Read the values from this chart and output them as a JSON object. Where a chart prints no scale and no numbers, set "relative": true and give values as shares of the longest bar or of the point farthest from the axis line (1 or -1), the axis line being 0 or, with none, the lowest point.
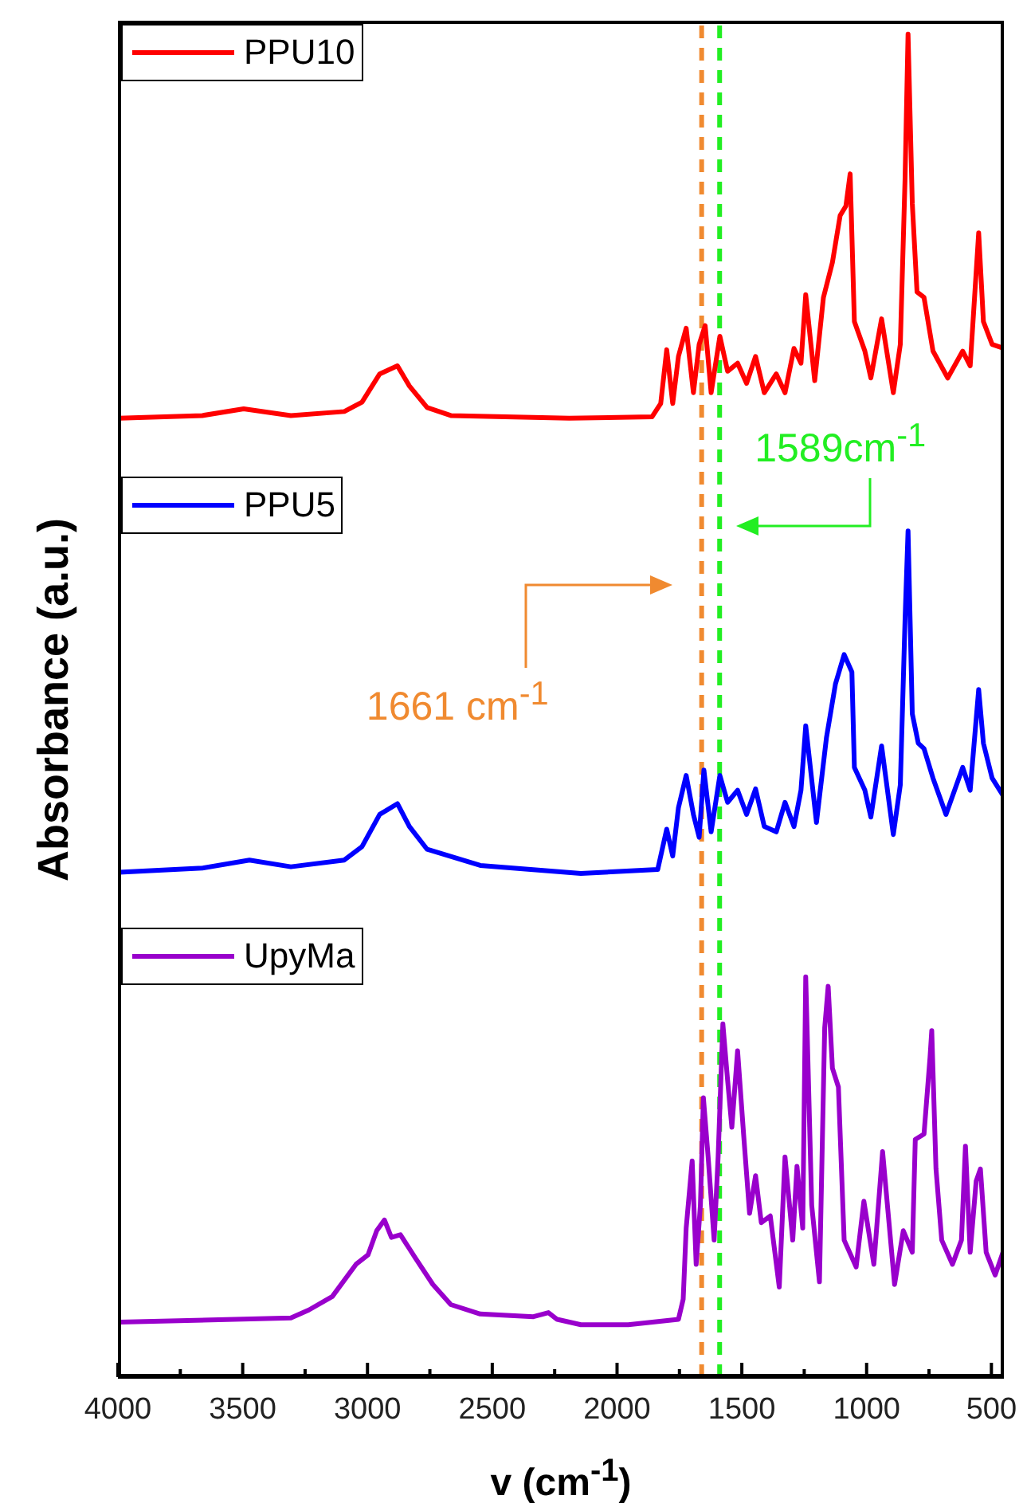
{
  "chart_data": {
    "type": "line",
    "relative": true,
    "xlabel": "v (cm$^{-1}$)",
    "ylabel": "Absorbance (a.u.)",
    "legend": "top left",
    "xlim": [
      4000,
      450
    ],
    "xticks": [
      4000,
      {
        "value": 3750,
        "label": null
      },
      3500,
      {
        "value": 3250,
        "label": null
      },
      3000,
      {
        "value": 2750,
        "label": null
      },
      2500,
      {
        "value": 2250,
        "label": null
      },
      2000,
      {
        "value": 1750,
        "label": null
      },
      1500,
      {
        "value": 1250,
        "label": null
      },
      1000,
      {
        "value": 750,
        "label": null
      },
      500
    ],
    "ref_lines": [
      {
        "axis": "x",
        "value": 1661,
        "label": "1661 cm$^{-1}$",
        "color": "#f08a30",
        "line_style": "dashed"
      },
      {
        "axis": "x",
        "value": 1589,
        "label": "1589cm$^{-1}$",
        "color": "#22ee22",
        "line_style": "dashed"
      }
    ],
    "series": [
      {
        "name": "PPU10",
        "color": "#ff0000",
        "x": [
          3994,
          3662,
          3496,
          3307,
          3093,
          3022,
          2951,
          2880,
          2832,
          2761,
          2666,
          2192,
          1860,
          1825,
          1801,
          1777,
          1754,
          1723,
          1694,
          1671,
          1647,
          1623,
          1588,
          1557,
          1517,
          1481,
          1445,
          1410,
          1362,
          1327,
          1291,
          1263,
          1244,
          1208,
          1173,
          1137,
          1106,
          1083,
          1066,
          1049,
          1007,
          983,
          940,
          893,
          865,
          846,
          834,
          817,
          798,
          770,
          734,
          675,
          615,
          585,
          551,
          532,
          497,
          450
        ],
        "values": [
          0.714,
          0.716,
          0.721,
          0.716,
          0.719,
          0.726,
          0.747,
          0.753,
          0.738,
          0.722,
          0.716,
          0.714,
          0.715,
          0.725,
          0.765,
          0.725,
          0.76,
          0.781,
          0.733,
          0.769,
          0.783,
          0.733,
          0.775,
          0.749,
          0.755,
          0.74,
          0.76,
          0.733,
          0.747,
          0.733,
          0.766,
          0.755,
          0.806,
          0.742,
          0.804,
          0.83,
          0.865,
          0.872,
          0.896,
          0.786,
          0.764,
          0.744,
          0.788,
          0.733,
          0.769,
          0.892,
          1,
          0.874,
          0.808,
          0.804,
          0.764,
          0.744,
          0.764,
          0.753,
          0.852,
          0.786,
          0.769,
          0.766
        ]
      },
      {
        "name": "PPU5",
        "color": "#0000ff",
        "x": [
          3994,
          3662,
          3473,
          3307,
          3093,
          3022,
          2951,
          2880,
          2832,
          2761,
          2548,
          2145,
          1837,
          1801,
          1777,
          1754,
          1723,
          1694,
          1671,
          1652,
          1623,
          1588,
          1557,
          1517,
          1481,
          1445,
          1410,
          1362,
          1327,
          1291,
          1263,
          1244,
          1201,
          1161,
          1125,
          1090,
          1059,
          1049,
          1007,
          983,
          940,
          893,
          865,
          846,
          834,
          817,
          793,
          770,
          734,
          682,
          615,
          585,
          551,
          532,
          497,
          450
        ],
        "values": [
          0.376,
          0.379,
          0.385,
          0.38,
          0.385,
          0.395,
          0.419,
          0.427,
          0.41,
          0.393,
          0.381,
          0.375,
          0.378,
          0.408,
          0.388,
          0.424,
          0.448,
          0.419,
          0.402,
          0.452,
          0.406,
          0.448,
          0.428,
          0.437,
          0.419,
          0.438,
          0.41,
          0.406,
          0.428,
          0.41,
          0.437,
          0.485,
          0.413,
          0.476,
          0.516,
          0.538,
          0.525,
          0.454,
          0.437,
          0.417,
          0.47,
          0.404,
          0.441,
          0.564,
          0.63,
          0.494,
          0.472,
          0.468,
          0.446,
          0.419,
          0.454,
          0.437,
          0.512,
          0.472,
          0.446,
          0.432
        ]
      },
      {
        "name": "UpyMa",
        "color": "#9900cc",
        "x": [
          3994,
          3307,
          3235,
          3141,
          3046,
          2998,
          2963,
          2932,
          2904,
          2868,
          2809,
          2738,
          2666,
          2548,
          2335,
          2275,
          2240,
          2145,
          1955,
          1754,
          1735,
          1723,
          1699,
          1683,
          1666,
          1654,
          1635,
          1611,
          1595,
          1576,
          1557,
          1540,
          1517,
          1493,
          1469,
          1445,
          1422,
          1386,
          1350,
          1327,
          1296,
          1279,
          1256,
          1244,
          1220,
          1189,
          1168,
          1154,
          1137,
          1113,
          1090,
          1042,
          1011,
          971,
          936,
          888,
          853,
          817,
          805,
          770,
          746,
          739,
          722,
          699,
          656,
          620,
          604,
          585,
          561,
          544,
          521,
          485,
          450
        ],
        "values": [
          0.041,
          0.044,
          0.05,
          0.06,
          0.084,
          0.091,
          0.109,
          0.117,
          0.104,
          0.106,
          0.089,
          0.069,
          0.054,
          0.047,
          0.045,
          0.048,
          0.043,
          0.039,
          0.039,
          0.043,
          0.058,
          0.111,
          0.161,
          0.084,
          0.128,
          0.208,
          0.164,
          0.102,
          0.164,
          0.263,
          0.221,
          0.186,
          0.243,
          0.181,
          0.122,
          0.15,
          0.115,
          0.12,
          0.067,
          0.164,
          0.102,
          0.157,
          0.111,
          0.298,
          0.128,
          0.071,
          0.26,
          0.291,
          0.23,
          0.216,
          0.102,
          0.082,
          0.131,
          0.084,
          0.168,
          0.069,
          0.109,
          0.093,
          0.177,
          0.181,
          0.238,
          0.258,
          0.155,
          0.102,
          0.084,
          0.102,
          0.172,
          0.093,
          0.146,
          0.155,
          0.093,
          0.076,
          0.095
        ]
      }
    ]
  }
}
